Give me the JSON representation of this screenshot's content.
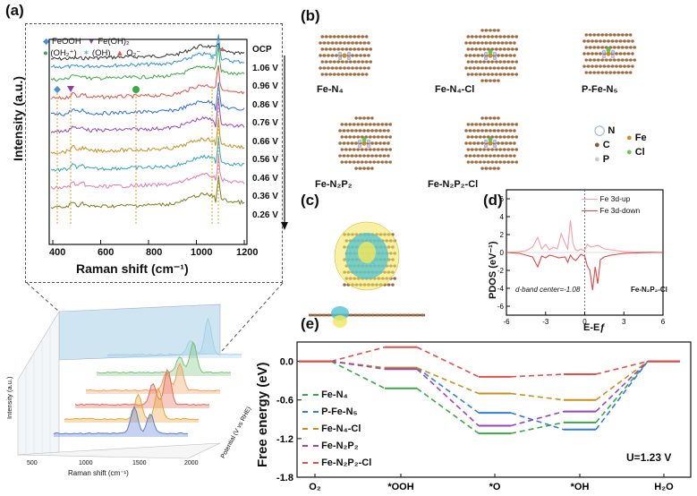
{
  "panels": {
    "a": "(a)",
    "b": "(b)",
    "c": "(c)",
    "d": "(d)",
    "e": "(e)"
  },
  "panel_a": {
    "legend": [
      {
        "text": "FeOOH",
        "marker": "diamond",
        "color": "#4a90d9"
      },
      {
        "text": "Fe(OH)₂",
        "marker": "triangle-down",
        "color": "#8b3fa8"
      },
      {
        "text": "(OH₂⁺)",
        "marker": "circle",
        "color": "#3aa845"
      },
      {
        "text": "(OH)",
        "marker": "star",
        "color": "#4fc3c7"
      },
      {
        "text": "O₂⁻",
        "marker": "triangle-up",
        "color": "#e8563a"
      }
    ],
    "potentials": [
      "OCP",
      "1.06 V",
      "0.96 V",
      "0.86 V",
      "0.76 V",
      "0.66 V",
      "0.56 V",
      "0.46 V",
      "0.36 V",
      "0.26 V"
    ],
    "series_colors": [
      "#333333",
      "#2f8fd8",
      "#3aa845",
      "#e2504a",
      "#2a6fd6",
      "#9a45b8",
      "#c98f1a",
      "#2fa5b5",
      "#e07ab0",
      "#7e7a1f"
    ],
    "ylabel": "Intensity (a.u.)",
    "xlabel": "Raman shift (cm⁻¹)",
    "xticks": [
      "400",
      "600",
      "800",
      "1000",
      "1200"
    ]
  },
  "panel_a_3d": {
    "ylabel": "Intensity (a.u.)",
    "xlabel": "Raman shift (cm⁻¹)",
    "xticks": [
      "500",
      "1000",
      "1500",
      "2000"
    ],
    "zlabel": "Potential (V vs RHE)",
    "slab_colors": [
      "#5b7fd0",
      "#e9a33a",
      "#e36b5a",
      "#f0a060",
      "#7ec27a",
      "#a0d0ea"
    ]
  },
  "panel_b": {
    "structures": [
      "Fe-N₄",
      "Fe-N₄-Cl",
      "P-Fe-N₅",
      "Fe-N₂P₂",
      "Fe-N₂P₂-Cl"
    ],
    "legend": [
      {
        "text": "N",
        "color": "#9fb6e0"
      },
      {
        "text": "C",
        "color": "#8b5a2b"
      },
      {
        "text": "P",
        "color": "#d0c8d8"
      },
      {
        "text": "Fe",
        "color": "#d08a2a"
      },
      {
        "text": "Cl",
        "color": "#5ecf4a"
      }
    ]
  },
  "chart_data": [
    {
      "type": "line",
      "panel": "d",
      "title": "",
      "xlabel": "E-Eƒ",
      "ylabel": "PDOS (eV⁻¹)",
      "xlim": [
        -6,
        6
      ],
      "ylim": [
        -7,
        7
      ],
      "xticks": [
        "-6",
        "-3",
        "0",
        "3",
        "6"
      ],
      "yticks": [
        "6",
        "4",
        "2",
        "0",
        "-2",
        "-4",
        "-6"
      ],
      "legend": [
        "Fe 3d-up",
        "Fe 3d-down"
      ],
      "annotation": "d-band center=-1.08",
      "label": "Fe-N₂P₂-Cl",
      "series": [
        {
          "name": "Fe 3d-up",
          "color": "#f3a0a8",
          "x": [
            -6,
            -5,
            -4.5,
            -4,
            -3.6,
            -3.3,
            -3,
            -2.7,
            -2.4,
            -2.1,
            -1.8,
            -1.5,
            -1.3,
            -1.1,
            -0.9,
            -0.7,
            -0.5,
            -0.3,
            -0.1,
            0,
            0.2,
            0.5,
            1,
            1.5,
            2,
            3,
            4,
            5,
            6
          ],
          "values": [
            0,
            0.1,
            0.2,
            0.6,
            1.7,
            0.4,
            0.9,
            0.3,
            0.6,
            0.4,
            2.1,
            1.0,
            0.4,
            3.6,
            1.0,
            0.3,
            0.2,
            0.4,
            0.2,
            0.3,
            0.9,
            0.6,
            0.8,
            0.4,
            0.3,
            0.1,
            0.05,
            0.05,
            0
          ]
        },
        {
          "name": "Fe 3d-down",
          "color": "#e04848",
          "x": [
            -6,
            -5,
            -4.5,
            -4,
            -3.6,
            -3.3,
            -3,
            -2.7,
            -2.4,
            -2,
            -1.5,
            -1.3,
            -1.1,
            -0.9,
            -0.7,
            -0.5,
            -0.3,
            0,
            0.2,
            0.4,
            0.6,
            0.8,
            1,
            1.2,
            1.5,
            2,
            3,
            4,
            5,
            6
          ],
          "values": [
            0,
            -0.1,
            -0.3,
            -0.5,
            -1.6,
            -0.4,
            -0.6,
            -0.3,
            -0.4,
            -0.6,
            -0.5,
            -1.1,
            -0.3,
            -0.7,
            -0.9,
            -0.6,
            -0.2,
            -0.4,
            -1.5,
            -2.0,
            -4.2,
            -1.6,
            -3.5,
            -0.8,
            -0.5,
            -0.3,
            -0.1,
            -0.05,
            0,
            0
          ]
        }
      ]
    },
    {
      "type": "line",
      "panel": "e",
      "title": "",
      "xlabel": "",
      "ylabel": "Free energy (eV)",
      "ylim": [
        -1.8,
        0.3
      ],
      "categories": [
        "O₂",
        "*OOH",
        "*O",
        "*OH",
        "H₂O"
      ],
      "yticks": [
        "0.0",
        "-0.6",
        "-1.2",
        "-1.8"
      ],
      "annotation": "U=1.23 V",
      "series": [
        {
          "name": "Fe-N₄",
          "color": "#3aa845",
          "values": [
            0,
            -0.42,
            -1.12,
            -0.95,
            0
          ]
        },
        {
          "name": "P-Fe-N₅",
          "color": "#2f7fd8",
          "values": [
            0,
            -0.1,
            -0.8,
            -1.06,
            0
          ]
        },
        {
          "name": "Fe-N₄-Cl",
          "color": "#c98f1a",
          "values": [
            0,
            -0.1,
            -0.5,
            -0.6,
            0
          ]
        },
        {
          "name": "Fe-N₂P₂",
          "color": "#9a45b8",
          "values": [
            0,
            -0.12,
            -1.0,
            -0.78,
            0
          ]
        },
        {
          "name": "Fe-N₂P₂-Cl",
          "color": "#e2504a",
          "values": [
            0,
            0.22,
            -0.24,
            -0.2,
            0
          ]
        }
      ]
    }
  ]
}
